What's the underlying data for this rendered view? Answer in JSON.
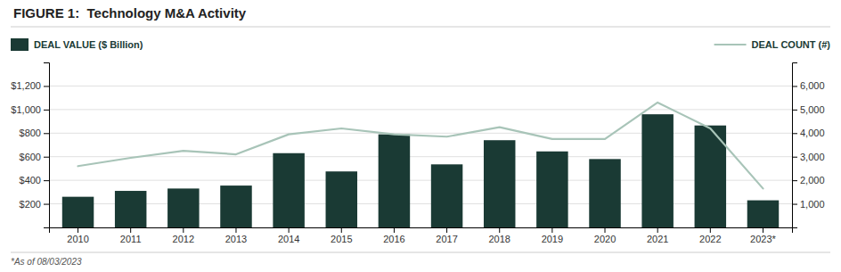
{
  "chart_data": {
    "type": "bar",
    "title": "FIGURE 1:  Technology M&A Activity",
    "annotations": [
      "*As of 08/03/2023"
    ],
    "categories": [
      "2010",
      "2011",
      "2012",
      "2013",
      "2014",
      "2015",
      "2016",
      "2017",
      "2018",
      "2019",
      "2020",
      "2021",
      "2022",
      "2023*"
    ],
    "series": [
      {
        "name": "DEAL VALUE ($ Billion)",
        "type": "bar",
        "color": "#1a3a34",
        "values": [
          260,
          310,
          330,
          355,
          630,
          475,
          790,
          535,
          740,
          645,
          580,
          960,
          865,
          230
        ]
      },
      {
        "name": "DEAL COUNT (#)",
        "type": "line",
        "color": "#a8c4b8",
        "axis": "y2",
        "values": [
          2600,
          2950,
          3250,
          3100,
          3950,
          4200,
          3950,
          3850,
          4250,
          3750,
          3750,
          5300,
          4200,
          1650
        ]
      }
    ],
    "ylim": [
      0,
      1400
    ],
    "yticks": [
      {
        "value": 200,
        "label": "$200"
      },
      {
        "value": 400,
        "label": "$400"
      },
      {
        "value": 600,
        "label": "$600"
      },
      {
        "value": 800,
        "label": "$800"
      },
      {
        "value": 1000,
        "label": "$1,000"
      },
      {
        "value": 1200,
        "label": "$1,200"
      }
    ],
    "y2lim": [
      0,
      7000
    ],
    "y2ticks": [
      {
        "value": 1000,
        "label": "1,000"
      },
      {
        "value": 2000,
        "label": "2,000"
      },
      {
        "value": 3000,
        "label": "3,000"
      },
      {
        "value": 4000,
        "label": "4,000"
      },
      {
        "value": 5000,
        "label": "5,000"
      },
      {
        "value": 6000,
        "label": "6,000"
      }
    ],
    "grid": true,
    "legend": "top"
  }
}
